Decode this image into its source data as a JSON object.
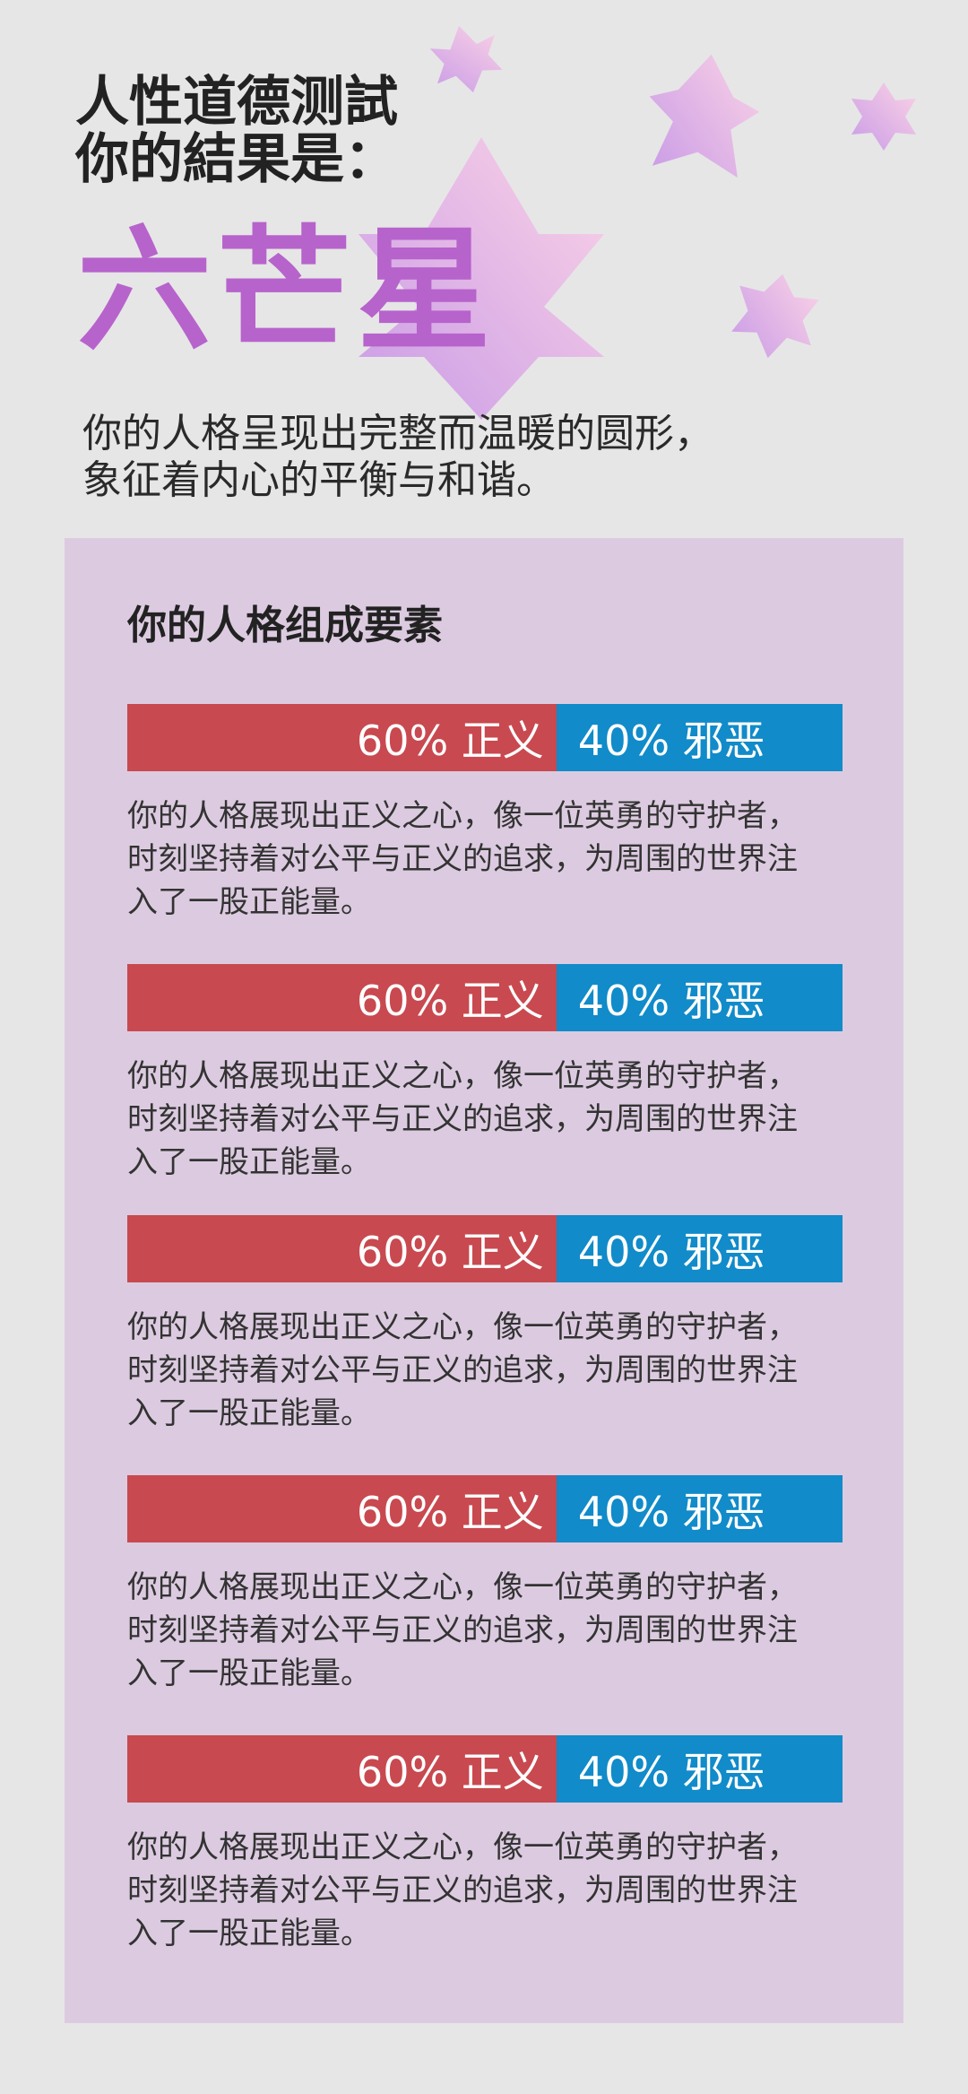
{
  "header": {
    "title_lines": [
      "人性道德测試",
      "你的結果是："
    ]
  },
  "result": {
    "name": "六芒星",
    "description_lines": [
      "你的人格呈现出完整而温暖的圆形，",
      "象征着内心的平衡与和谐。"
    ]
  },
  "panel": {
    "title": "你的人格组成要素",
    "traits": [
      {
        "left_label": "60% 正义",
        "left_share": 0.6,
        "right_label": "40% 邪恶",
        "right_share": 0.4,
        "description_lines": [
          "你的人格展现出正义之心，像一位英勇的守护者，",
          "时刻坚持着对公平与正义的追求，为周围的世界注",
          "入了一股正能量。"
        ]
      },
      {
        "left_label": "60% 正义",
        "left_share": 0.6,
        "right_label": "40% 邪恶",
        "right_share": 0.4,
        "description_lines": [
          "你的人格展现出正义之心，像一位英勇的守护者，",
          "时刻坚持着对公平与正义的追求，为周围的世界注",
          "入了一股正能量。"
        ]
      },
      {
        "left_label": "60% 正义",
        "left_share": 0.6,
        "right_label": "40% 邪恶",
        "right_share": 0.4,
        "description_lines": [
          "你的人格展现出正义之心，像一位英勇的守护者，",
          "时刻坚持着对公平与正义的追求，为周围的世界注",
          "入了一股正能量。"
        ]
      },
      {
        "left_label": "60% 正义",
        "left_share": 0.6,
        "right_label": "40% 邪恶",
        "right_share": 0.4,
        "description_lines": [
          "你的人格展现出正义之心，像一位英勇的守护者，",
          "时刻坚持着对公平与正义的追求，为周围的世界注",
          "入了一股正能量。"
        ]
      },
      {
        "left_label": "60% 正义",
        "left_share": 0.6,
        "right_label": "40% 邪恶",
        "right_share": 0.4,
        "description_lines": [
          "你的人格展现出正义之心，像一位英勇的守护者，",
          "时刻坚持着对公平与正义的追求，为周围的世界注",
          "入了一股正能量。"
        ]
      }
    ]
  },
  "colors": {
    "page_background": "#e6e6e6",
    "accent_purple": "#b763cc",
    "panel_background": "#dccbe0",
    "justice_red": "#c8494f",
    "evil_blue": "#118bc9",
    "star_pink": "#fbd3e6",
    "star_purple": "#c99be6"
  }
}
